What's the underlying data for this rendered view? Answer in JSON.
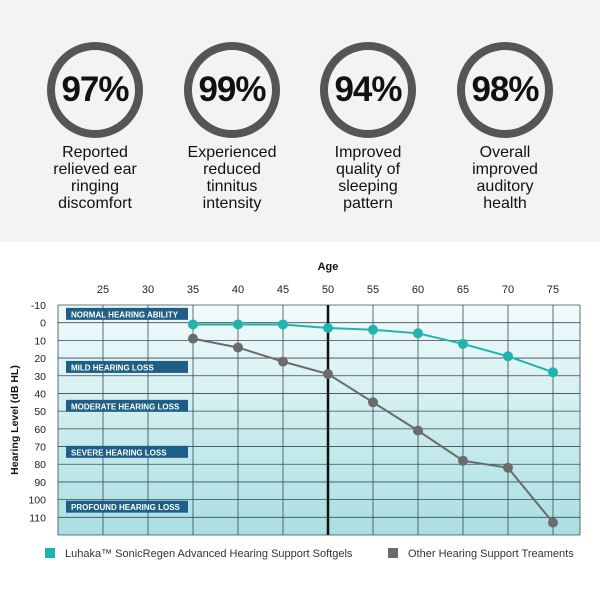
{
  "stats": [
    {
      "percent": "97%",
      "value": 97,
      "caption_lines": [
        "Reported",
        "relieved ear",
        "ringing",
        "discomfort"
      ]
    },
    {
      "percent": "99%",
      "value": 99,
      "caption_lines": [
        "Experienced",
        "reduced",
        "tinnitus",
        "intensity"
      ]
    },
    {
      "percent": "94%",
      "value": 94,
      "caption_lines": [
        "Improved",
        "quality of",
        "sleeping",
        "pattern"
      ]
    },
    {
      "percent": "98%",
      "value": 98,
      "caption_lines": [
        "Overall",
        "improved",
        "auditory",
        "health"
      ]
    }
  ],
  "chart_data": {
    "type": "line",
    "xlabel": "Age",
    "ylabel": "Hearing Level (dB HL)",
    "xticks": [
      25,
      30,
      35,
      40,
      45,
      50,
      55,
      60,
      65,
      70,
      75
    ],
    "yticks": [
      -10,
      0,
      10,
      20,
      30,
      40,
      50,
      60,
      70,
      80,
      90,
      100,
      110
    ],
    "xlim": [
      20,
      78
    ],
    "ylim": [
      -10,
      120
    ],
    "y_inverted": true,
    "x_axis_position": "top",
    "zones": [
      {
        "label": "NORMAL HEARING ABILITY",
        "y_label_at": -5
      },
      {
        "label": "MILD HEARING LOSS",
        "y_label_at": 25
      },
      {
        "label": "MODERATE HEARING LOSS",
        "y_label_at": 47
      },
      {
        "label": "SEVERE HEARING LOSS",
        "y_label_at": 73
      },
      {
        "label": "PROFOUND HEARING LOSS",
        "y_label_at": 104
      }
    ],
    "reference_line_x": 50,
    "series": [
      {
        "name": "Luhaka™ SonicRegen Advanced Hearing Support Softgels",
        "color": "#21b3ad",
        "x": [
          35,
          40,
          45,
          50,
          55,
          60,
          65,
          70,
          75
        ],
        "y": [
          1,
          1,
          1,
          3,
          4,
          6,
          12,
          19,
          28
        ]
      },
      {
        "name": "Other Hearing Support Treaments",
        "color": "#6b6b6b",
        "x": [
          35,
          40,
          45,
          50,
          55,
          60,
          65,
          70,
          75
        ],
        "y": [
          9,
          14,
          22,
          29,
          45,
          61,
          78,
          82,
          113
        ]
      }
    ],
    "legend_position": "bottom",
    "grid": true
  },
  "colors": {
    "ring": "#555555",
    "zone_label_bg": "#1f5f85",
    "zone_label_text": "#ffffff",
    "plot_top": "#f2fbfc",
    "plot_bottom": "#a9dfe2"
  }
}
